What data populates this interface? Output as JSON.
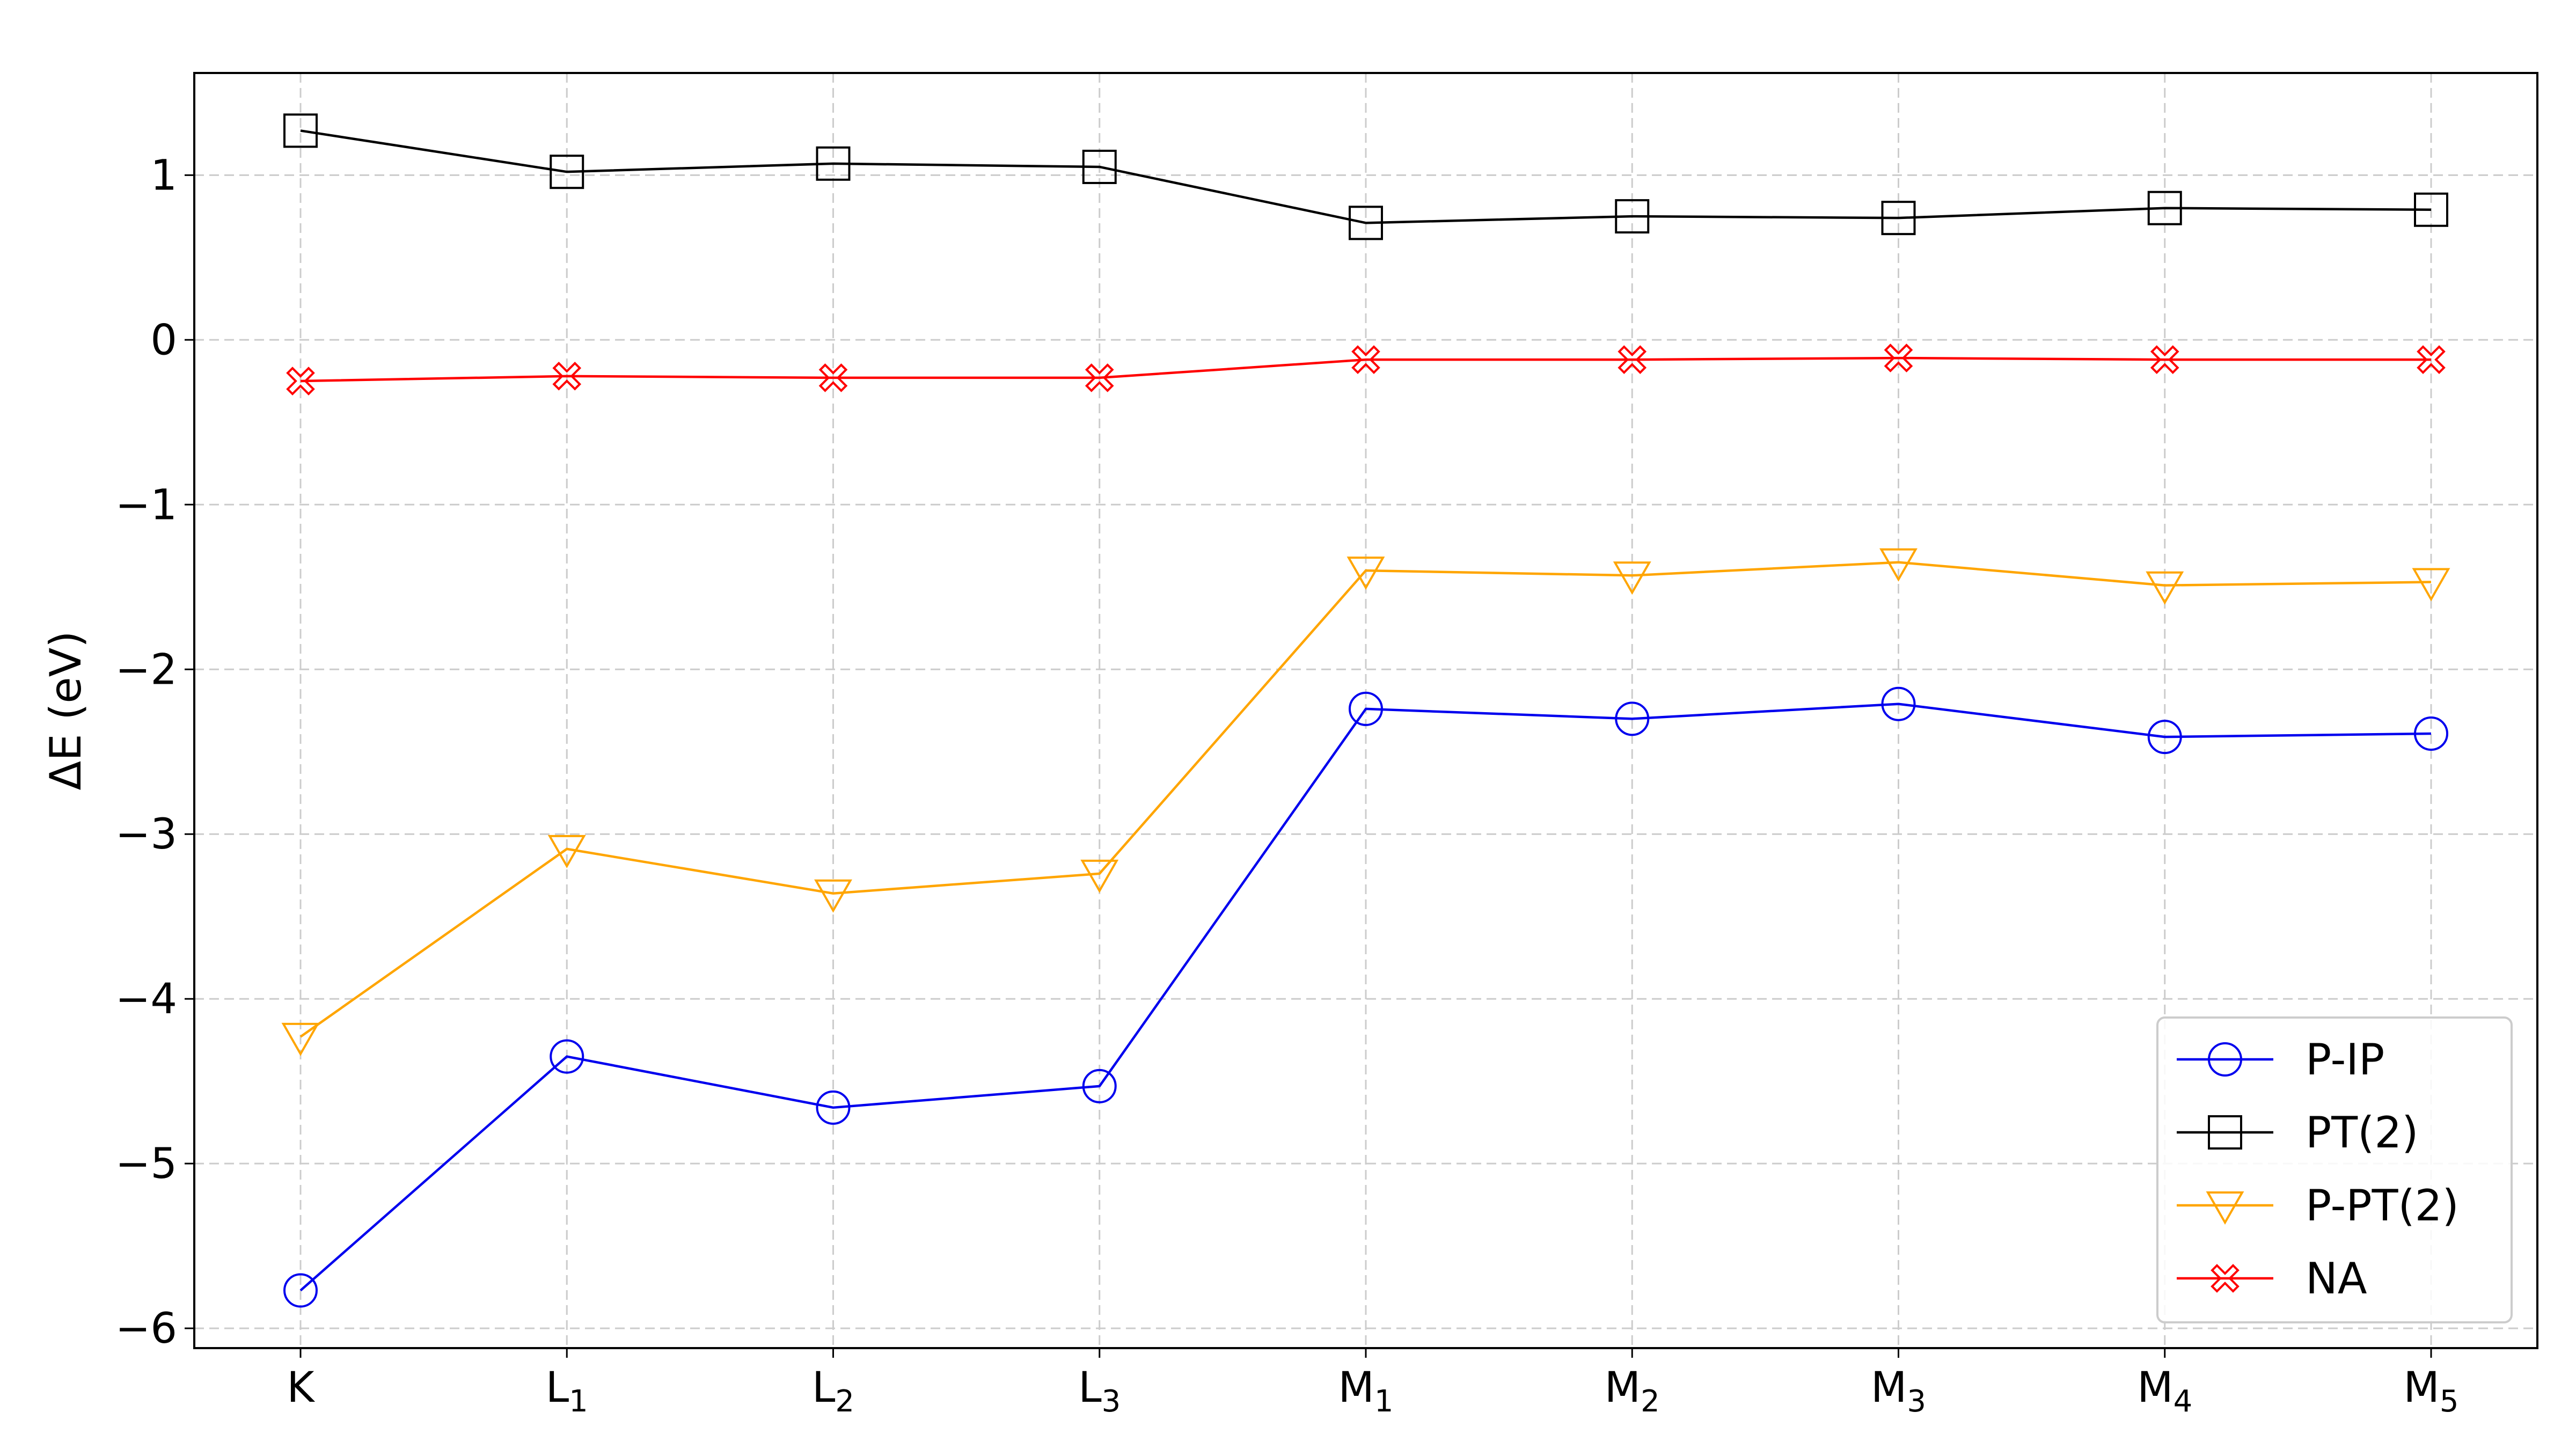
{
  "chart_data": {
    "type": "line",
    "title": "",
    "xlabel": "",
    "ylabel": "ΔE (eV)",
    "categories": [
      "K",
      "L1",
      "L2",
      "L3",
      "M1",
      "M2",
      "M3",
      "M4",
      "M5"
    ],
    "category_labels": [
      {
        "main": "K",
        "sub": ""
      },
      {
        "main": "L",
        "sub": "1"
      },
      {
        "main": "L",
        "sub": "2"
      },
      {
        "main": "L",
        "sub": "3"
      },
      {
        "main": "M",
        "sub": "1"
      },
      {
        "main": "M",
        "sub": "2"
      },
      {
        "main": "M",
        "sub": "3"
      },
      {
        "main": "M",
        "sub": "4"
      },
      {
        "main": "M",
        "sub": "5"
      }
    ],
    "ylim": [
      -6.12,
      1.62
    ],
    "yticks": [
      -6,
      -5,
      -4,
      -3,
      -2,
      -1,
      0,
      1
    ],
    "ytick_labels": [
      "−6",
      "−5",
      "−4",
      "−3",
      "−2",
      "−1",
      "0",
      "1"
    ],
    "grid": true,
    "legend_position": "lower-right",
    "series": [
      {
        "name": "P-IP",
        "color": "#0000ee",
        "marker": "circle",
        "values": [
          -5.77,
          -4.35,
          -4.66,
          -4.53,
          -2.24,
          -2.3,
          -2.21,
          -2.41,
          -2.39
        ]
      },
      {
        "name": "PT(2)",
        "color": "#000000",
        "marker": "square",
        "values": [
          1.27,
          1.02,
          1.07,
          1.05,
          0.71,
          0.75,
          0.74,
          0.8,
          0.79
        ]
      },
      {
        "name": "P-PT(2)",
        "color": "#ffa500",
        "marker": "triangle-down",
        "values": [
          -4.23,
          -3.09,
          -3.36,
          -3.24,
          -1.4,
          -1.43,
          -1.35,
          -1.49,
          -1.47
        ]
      },
      {
        "name": "NA",
        "color": "#ff0000",
        "marker": "x-filled",
        "values": [
          -0.25,
          -0.22,
          -0.23,
          -0.23,
          -0.12,
          -0.12,
          -0.11,
          -0.12,
          -0.12
        ]
      }
    ]
  }
}
